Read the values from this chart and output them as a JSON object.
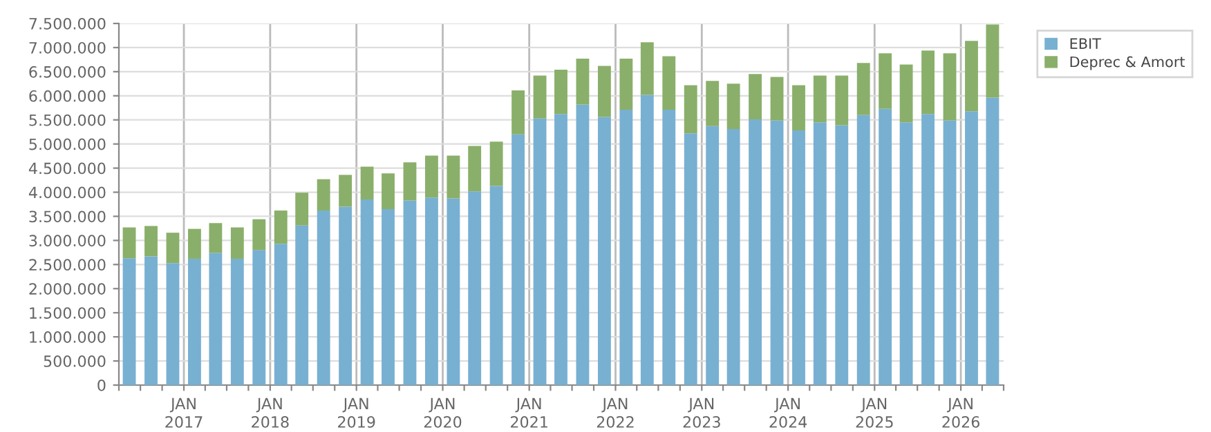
{
  "chart_data": {
    "type": "bar",
    "stacked": true,
    "x": [
      "2016-05-15",
      "2016-08-15",
      "2016-11-15",
      "2017-02-15",
      "2017-05-15",
      "2017-08-15",
      "2017-11-15",
      "2018-02-15",
      "2018-05-15",
      "2018-08-15",
      "2018-11-15",
      "2019-02-15",
      "2019-05-15",
      "2019-08-15",
      "2019-11-15",
      "2020-02-15",
      "2020-05-15",
      "2020-08-15",
      "2020-11-15",
      "2021-02-15",
      "2021-05-15",
      "2021-08-15",
      "2021-11-15",
      "2022-02-15",
      "2022-05-15",
      "2022-08-15",
      "2022-11-15",
      "2023-02-15",
      "2023-05-15",
      "2023-08-15",
      "2023-11-15",
      "2024-02-15",
      "2024-05-15",
      "2024-08-15",
      "2024-11-15",
      "2025-02-15",
      "2025-05-15",
      "2025-08-15",
      "2025-11-15",
      "2026-02-15",
      "2026-05-15"
    ],
    "series": [
      {
        "name": "EBIT",
        "color": "#78b0d2",
        "values": [
          2630000,
          2670000,
          2530000,
          2620000,
          2740000,
          2620000,
          2800000,
          2930000,
          3310000,
          3620000,
          3700000,
          3850000,
          3650000,
          3830000,
          3890000,
          3870000,
          4020000,
          4130000,
          5200000,
          5530000,
          5620000,
          5820000,
          5560000,
          5710000,
          6020000,
          5710000,
          5220000,
          5370000,
          5310000,
          5510000,
          5490000,
          5280000,
          5450000,
          5390000,
          5600000,
          5730000,
          5450000,
          5620000,
          5490000,
          5680000,
          5960000
        ]
      },
      {
        "name": "Deprec & Amort",
        "color": "#8aaf6a",
        "values": [
          640000,
          630000,
          630000,
          620000,
          620000,
          650000,
          640000,
          690000,
          680000,
          650000,
          660000,
          680000,
          740000,
          790000,
          870000,
          890000,
          940000,
          920000,
          910000,
          890000,
          920000,
          950000,
          1060000,
          1060000,
          1090000,
          1110000,
          1000000,
          940000,
          940000,
          940000,
          900000,
          940000,
          970000,
          1030000,
          1080000,
          1150000,
          1200000,
          1320000,
          1390000,
          1460000,
          1520000
        ]
      }
    ],
    "xlim": [
      "2016-04",
      "2026-07"
    ],
    "xticks": [
      {
        "value": "2016-04",
        "label": null
      },
      {
        "value": "2016-07",
        "label": null
      },
      {
        "value": "2016-10",
        "label": null
      },
      {
        "value": "2017-01",
        "label": "JAN\n2017"
      },
      {
        "value": "2017-04",
        "label": null
      },
      {
        "value": "2017-07",
        "label": null
      },
      {
        "value": "2017-10",
        "label": null
      },
      {
        "value": "2018-01",
        "label": "JAN\n2018"
      },
      {
        "value": "2018-04",
        "label": null
      },
      {
        "value": "2018-07",
        "label": null
      },
      {
        "value": "2018-10",
        "label": null
      },
      {
        "value": "2019-01",
        "label": "JAN\n2019"
      },
      {
        "value": "2019-04",
        "label": null
      },
      {
        "value": "2019-07",
        "label": null
      },
      {
        "value": "2019-10",
        "label": null
      },
      {
        "value": "2020-01",
        "label": "JAN\n2020"
      },
      {
        "value": "2020-04",
        "label": null
      },
      {
        "value": "2020-07",
        "label": null
      },
      {
        "value": "2020-10",
        "label": null
      },
      {
        "value": "2021-01",
        "label": "JAN\n2021"
      },
      {
        "value": "2021-04",
        "label": null
      },
      {
        "value": "2021-07",
        "label": null
      },
      {
        "value": "2021-10",
        "label": null
      },
      {
        "value": "2022-01",
        "label": "JAN\n2022"
      },
      {
        "value": "2022-04",
        "label": null
      },
      {
        "value": "2022-07",
        "label": null
      },
      {
        "value": "2022-10",
        "label": null
      },
      {
        "value": "2023-01",
        "label": "JAN\n2023"
      },
      {
        "value": "2023-04",
        "label": null
      },
      {
        "value": "2023-07",
        "label": null
      },
      {
        "value": "2023-10",
        "label": null
      },
      {
        "value": "2024-01",
        "label": "JAN\n2024"
      },
      {
        "value": "2024-04",
        "label": null
      },
      {
        "value": "2024-07",
        "label": null
      },
      {
        "value": "2024-10",
        "label": null
      },
      {
        "value": "2025-01",
        "label": "JAN\n2025"
      },
      {
        "value": "2025-04",
        "label": null
      },
      {
        "value": "2025-07",
        "label": null
      },
      {
        "value": "2025-10",
        "label": null
      },
      {
        "value": "2026-01",
        "label": "JAN\n2026"
      },
      {
        "value": "2026-04",
        "label": null
      },
      {
        "value": "2026-07",
        "label": null
      }
    ],
    "ylim": [
      0,
      7500000
    ],
    "yticks": [
      {
        "value": 0,
        "label": "0"
      },
      {
        "value": 500000,
        "label": "500.000"
      },
      {
        "value": 1000000,
        "label": "1.000.000"
      },
      {
        "value": 1500000,
        "label": "1.500.000"
      },
      {
        "value": 2000000,
        "label": "2.000.000"
      },
      {
        "value": 2500000,
        "label": "2.500.000"
      },
      {
        "value": 3000000,
        "label": "3.000.000"
      },
      {
        "value": 3500000,
        "label": "3.500.000"
      },
      {
        "value": 4000000,
        "label": "4.000.000"
      },
      {
        "value": 4500000,
        "label": "4.500.000"
      },
      {
        "value": 5000000,
        "label": "5.000.000"
      },
      {
        "value": 5500000,
        "label": "5.500.000"
      },
      {
        "value": 6000000,
        "label": "6.000.000"
      },
      {
        "value": 6500000,
        "label": "6.500.000"
      },
      {
        "value": 7000000,
        "label": "7.000.000"
      },
      {
        "value": 7500000,
        "label": "7.500.000"
      }
    ],
    "grid": true,
    "legend": "top right"
  }
}
